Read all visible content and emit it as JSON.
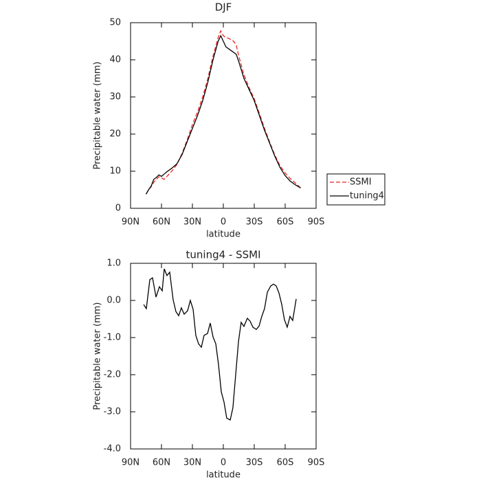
{
  "chart_data": [
    {
      "type": "line",
      "title": "DJF",
      "xlabel": "latitude",
      "ylabel": "Precipitable water (mm)",
      "xlim": [
        90,
        -90
      ],
      "xticks": [
        {
          "value": 90,
          "label": "90N"
        },
        {
          "value": 60,
          "label": "60N"
        },
        {
          "value": 30,
          "label": "30N"
        },
        0,
        {
          "value": -30,
          "label": "30S"
        },
        {
          "value": -60,
          "label": "60S"
        },
        {
          "value": -90,
          "label": "90S"
        }
      ],
      "ylim": [
        0,
        50
      ],
      "yticks": [
        0,
        10,
        20,
        30,
        40,
        50
      ],
      "legend": "right",
      "x": [
        75,
        72.5,
        70,
        67.5,
        65,
        62.5,
        60,
        57.5,
        55,
        50,
        45,
        40,
        35,
        30,
        25,
        20,
        15,
        10,
        5,
        2.5,
        0,
        -2.5,
        -5,
        -10,
        -12.5,
        -15,
        -20,
        -25,
        -30,
        -35,
        -40,
        -45,
        -50,
        -55,
        -60,
        -65,
        -70,
        -75
      ],
      "series": [
        {
          "name": "SSMI",
          "color": "#e8231f",
          "dash": true,
          "values": [
            3.8,
            5,
            5.8,
            7,
            7.8,
            8.5,
            8.2,
            7.8,
            8.5,
            10,
            11.8,
            14.8,
            18.5,
            22.5,
            26,
            30,
            35,
            41,
            46,
            47.8,
            46.5,
            46,
            45.8,
            45,
            44,
            41,
            36,
            32.5,
            29.5,
            25.5,
            21.5,
            17.8,
            14.3,
            11.5,
            9.5,
            8,
            6.8,
            5.5
          ]
        },
        {
          "name": "tuning4",
          "color": "#000000",
          "dash": false,
          "values": [
            3.8,
            5,
            6,
            7.8,
            8.3,
            9,
            8.6,
            9.2,
            9.8,
            10.8,
            12,
            14.5,
            18,
            21.5,
            25,
            29,
            34,
            40,
            45,
            46.5,
            45,
            43.5,
            43,
            42,
            41.5,
            39.5,
            35,
            32,
            29,
            25,
            21,
            17.5,
            14,
            11,
            8.8,
            7.3,
            6.3,
            5.5
          ]
        }
      ]
    },
    {
      "type": "line",
      "title": "tuning4 - SSMI",
      "xlabel": "latitude",
      "ylabel": "Precipitable water (mm)",
      "xlim": [
        90,
        -90
      ],
      "xticks": [
        {
          "value": 90,
          "label": "90N"
        },
        {
          "value": 60,
          "label": "60N"
        },
        {
          "value": 30,
          "label": "30N"
        },
        0,
        {
          "value": -30,
          "label": "30S"
        },
        {
          "value": -60,
          "label": "60S"
        },
        {
          "value": -90,
          "label": "90S"
        }
      ],
      "ylim": [
        -4,
        1
      ],
      "yticks": [
        {
          "value": -4,
          "label": "-4.0"
        },
        {
          "value": -3,
          "label": "-3.0"
        },
        {
          "value": -2,
          "label": "-2.0"
        },
        {
          "value": -1,
          "label": "-1.0"
        },
        {
          "value": 0,
          "label": "0.0"
        },
        {
          "value": 1,
          "label": "1.0"
        }
      ],
      "x": [
        77.3,
        74.7,
        71.3,
        68.7,
        65.3,
        62,
        59.3,
        57.3,
        54.7,
        52,
        48.7,
        46,
        43.3,
        40.7,
        38,
        34.7,
        32,
        29.3,
        26.7,
        24,
        21.3,
        18.7,
        15.3,
        12.7,
        10,
        7.3,
        4.7,
        2,
        -0.7,
        -3.3,
        -6.7,
        -9.3,
        -12,
        -14.7,
        -17.3,
        -20,
        -23.3,
        -26,
        -28.7,
        -32,
        -34.7,
        -37.3,
        -40,
        -42.7,
        -46,
        -48.7,
        -51.3,
        -54,
        -56.7,
        -59.3,
        -62,
        -64.7,
        -67.3,
        -70.7
      ],
      "series": [
        {
          "color": "#000000",
          "values": [
            -0.11,
            -0.22,
            0.56,
            0.61,
            0.09,
            0.37,
            0.26,
            0.85,
            0.67,
            0.76,
            0.02,
            -0.3,
            -0.41,
            -0.2,
            -0.37,
            -0.28,
            0,
            -0.24,
            -0.94,
            -1.17,
            -1.26,
            -0.94,
            -0.89,
            -0.61,
            -0.98,
            -1.17,
            -1.72,
            -2.46,
            -2.74,
            -3.17,
            -3.22,
            -2.89,
            -2,
            -1.11,
            -0.59,
            -0.7,
            -0.48,
            -0.56,
            -0.72,
            -0.78,
            -0.69,
            -0.43,
            -0.22,
            0.22,
            0.39,
            0.44,
            0.39,
            0.2,
            -0.11,
            -0.52,
            -0.72,
            -0.43,
            -0.54,
            0.04
          ]
        }
      ]
    }
  ]
}
